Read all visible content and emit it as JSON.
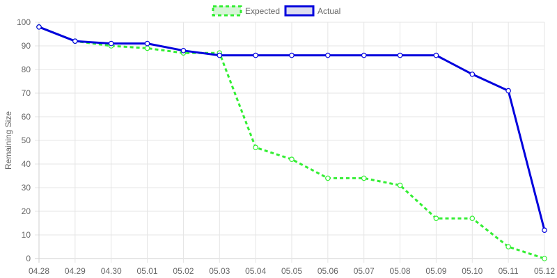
{
  "chart_data": {
    "type": "line",
    "categories": [
      "04.28",
      "04.29",
      "04.30",
      "05.01",
      "05.02",
      "05.03",
      "05.04",
      "05.05",
      "05.06",
      "05.07",
      "05.08",
      "05.09",
      "05.10",
      "05.11",
      "05.12"
    ],
    "series": [
      {
        "name": "Expected",
        "color": "#33ee33",
        "dashed": true,
        "values": [
          98,
          92,
          90,
          89,
          87,
          87,
          47,
          42,
          34,
          34,
          31,
          17,
          17,
          5,
          0
        ]
      },
      {
        "name": "Actual",
        "color": "#0000dd",
        "dashed": false,
        "values": [
          98,
          92,
          91,
          91,
          88,
          86,
          86,
          86,
          86,
          86,
          86,
          86,
          78,
          71,
          12
        ]
      }
    ],
    "title": "",
    "xlabel": "",
    "ylabel": "Remaining Size",
    "ylim": [
      0,
      100
    ],
    "yticks": [
      0,
      10,
      20,
      30,
      40,
      50,
      60,
      70,
      80,
      90,
      100
    ],
    "grid": true,
    "legend_position": "top-center"
  }
}
